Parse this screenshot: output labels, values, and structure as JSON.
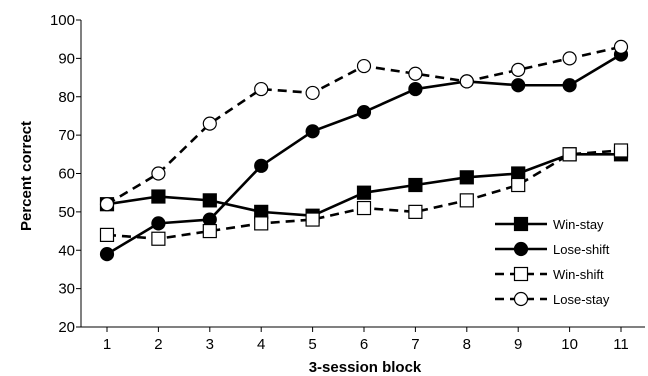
{
  "chart_data": {
    "type": "line",
    "title": "",
    "xlabel": "3-session block",
    "ylabel": "Percent correct",
    "x": [
      1,
      2,
      3,
      4,
      5,
      6,
      7,
      8,
      9,
      10,
      11
    ],
    "xticks": [
      "1",
      "2",
      "3",
      "4",
      "5",
      "6",
      "7",
      "8",
      "9",
      "10",
      "11"
    ],
    "ylim": [
      20,
      100
    ],
    "yticks": [
      "20",
      "30",
      "40",
      "50",
      "60",
      "70",
      "80",
      "90",
      "100"
    ],
    "grid": false,
    "legend_position": "bottom-right",
    "series": [
      {
        "name": "Win-stay",
        "values": [
          52,
          54,
          53,
          50,
          49,
          55,
          57,
          59,
          60,
          65,
          65
        ],
        "marker": "square-filled",
        "line": "solid",
        "color": "#000000"
      },
      {
        "name": "Lose-shift",
        "values": [
          39,
          47,
          48,
          62,
          71,
          76,
          82,
          84,
          83,
          83,
          91
        ],
        "marker": "circle-filled",
        "line": "solid",
        "color": "#000000"
      },
      {
        "name": "Win-shift",
        "values": [
          44,
          43,
          45,
          47,
          48,
          51,
          50,
          53,
          57,
          65,
          66
        ],
        "marker": "square-open",
        "line": "dashed",
        "color": "#000000"
      },
      {
        "name": "Lose-stay",
        "values": [
          52,
          60,
          73,
          82,
          81,
          88,
          86,
          84,
          87,
          90,
          93
        ],
        "marker": "circle-open",
        "line": "dashed",
        "color": "#000000"
      }
    ]
  }
}
